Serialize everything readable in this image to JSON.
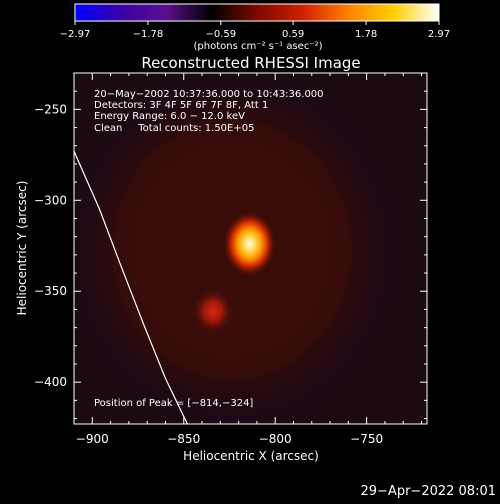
{
  "chart_data": {
    "type": "heatmap",
    "title": "Reconstructed RHESSI Image",
    "xlabel": "Heliocentric X (arcsec)",
    "ylabel": "Heliocentric Y (arcsec)",
    "xlim": [
      -910,
      -717
    ],
    "ylim": [
      -423,
      -230
    ],
    "x_ticks": [
      -900,
      -850,
      -800,
      -750
    ],
    "y_ticks": [
      -250,
      -300,
      -350,
      -400
    ],
    "x_tick_labels": [
      "−900",
      "−850",
      "−800",
      "−750"
    ],
    "y_tick_labels": [
      "−250",
      "−300",
      "−350",
      "−400"
    ],
    "colorbar": {
      "min": -2.97,
      "max": 2.97,
      "tick_labels": [
        "−2.97",
        "−1.78",
        "−0.59",
        "0.59",
        "1.78",
        "2.97"
      ],
      "tick_values": [
        -2.97,
        -1.78,
        -0.59,
        0.59,
        1.78,
        2.97
      ],
      "unit_label": "(photons cm⁻² s⁻¹ asec⁻²)",
      "colors": [
        "#0000ff",
        "#3a00a8",
        "#5a0f8c",
        "#000000",
        "#7a0a00",
        "#d02000",
        "#ff8000",
        "#ffd000",
        "#ffffff"
      ]
    },
    "annotations": [
      "20−May−2002 10:37:36.000 to 10:43:36.000",
      "Detectors: 3F 4F 5F 6F 7F 8F, Att 1",
      "Energy Range: 6.0 − 12.0 keV",
      "Clean     Total counts: 1.50E+05"
    ],
    "peak_label": "Position of Peak = [−814,−324]",
    "sources": [
      {
        "name": "main source",
        "x": -814,
        "y": -324,
        "intensity": 2.97
      },
      {
        "name": "secondary source",
        "x": -834,
        "y": -361,
        "intensity": 1.2
      }
    ],
    "limb_curve": [
      [
        -910,
        -273
      ],
      [
        -896,
        -305
      ],
      [
        -884,
        -337
      ],
      [
        -872,
        -368
      ],
      [
        -860,
        -398
      ],
      [
        -848,
        -423
      ]
    ]
  },
  "footer": {
    "timestamp": "29−Apr−2022 08:01"
  }
}
